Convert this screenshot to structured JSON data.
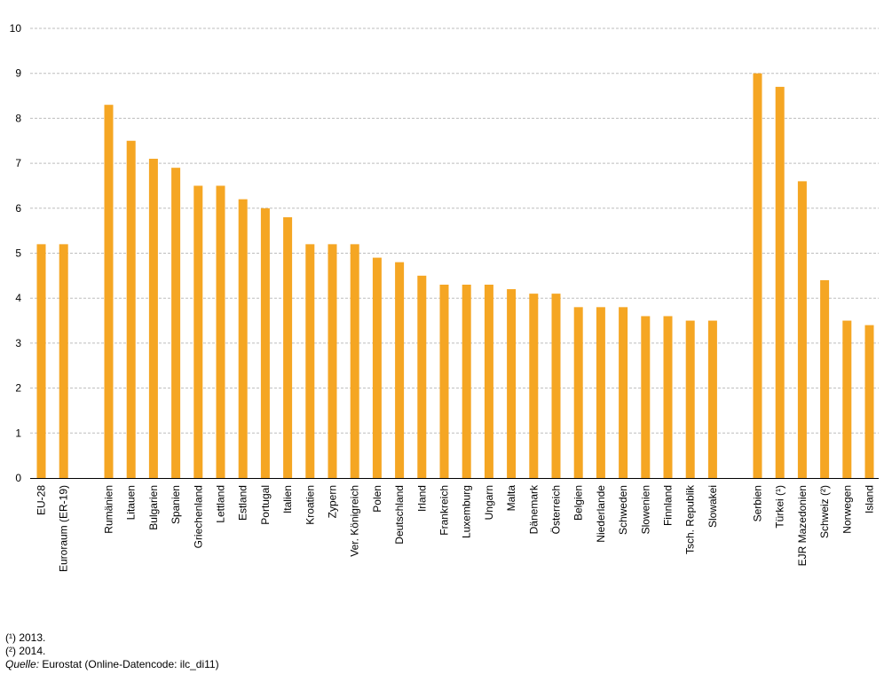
{
  "chart_data": {
    "type": "bar",
    "title": "",
    "xlabel": "",
    "ylabel": "",
    "ylim": [
      0,
      10
    ],
    "yticks": [
      0,
      1,
      2,
      3,
      4,
      5,
      6,
      7,
      8,
      9,
      10
    ],
    "grid": "horizontal dashed",
    "bar_color": "#f5a623",
    "groups": [
      {
        "categories": [
          "EU-28",
          "Euroraum (ER-19)"
        ],
        "values": [
          5.2,
          5.2
        ]
      },
      {
        "categories": [
          "Rumänien",
          "Litauen",
          "Bulgarien",
          "Spanien",
          "Griechenland",
          "Lettland",
          "Estland",
          "Portugal",
          "Italien",
          "Kroatien",
          "Zypern",
          "Ver. Königreich",
          "Polen",
          "Deutschland",
          "Irland",
          "Frankreich",
          "Luxemburg",
          "Ungarn",
          "Malta",
          "Dänemark",
          "Österreich",
          "Belgien",
          "Niederlande",
          "Schweden",
          "Slowenien",
          "Finnland",
          "Tsch. Republik",
          "Slowakei"
        ],
        "values": [
          8.3,
          7.5,
          7.1,
          6.9,
          6.5,
          6.5,
          6.2,
          6.0,
          5.8,
          5.2,
          5.2,
          5.2,
          4.9,
          4.8,
          4.5,
          4.3,
          4.3,
          4.3,
          4.2,
          4.1,
          4.1,
          3.8,
          3.8,
          3.8,
          3.6,
          3.6,
          3.5,
          3.5
        ]
      },
      {
        "categories": [
          "Serbien",
          "Türkei (¹)",
          "EJR Mazedonien",
          "Schweiz (²)",
          "Norwegen",
          "Island"
        ],
        "values": [
          9.0,
          8.7,
          6.6,
          4.4,
          3.5,
          3.4
        ]
      }
    ]
  },
  "footnotes": {
    "note1": "(¹) 2013.",
    "note2": "(²) 2014.",
    "source_label": "Quelle:",
    "source_text": " Eurostat (Online-Datencode: ilc_di11)"
  }
}
